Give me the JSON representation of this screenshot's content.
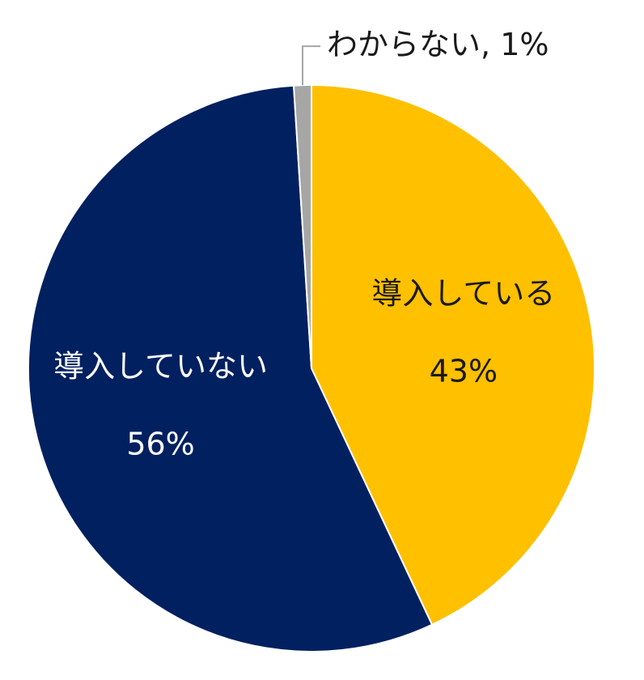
{
  "chart_data": {
    "type": "pie",
    "categories": [
      "導入している",
      "導入していない",
      "わからない"
    ],
    "values": [
      43,
      56,
      1
    ],
    "value_labels": [
      "43%",
      "56%",
      "1%"
    ],
    "colors": [
      "#FFC000",
      "#002060",
      "#A6A6A6"
    ],
    "label_colors": [
      "#1a1a1a",
      "#ffffff",
      "#1a1a1a"
    ],
    "outside_label_separator": ", ",
    "start_angle": 0,
    "direction": "clockwise"
  }
}
